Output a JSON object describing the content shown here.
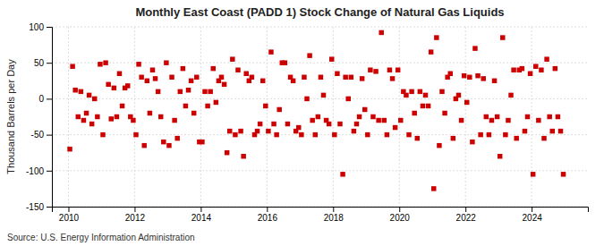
{
  "chart_data": {
    "type": "scatter",
    "title": "Monthly East Coast (PADD 1) Stock Change of Natural Gas Liquids",
    "ylabel": "Thousand Barrels per Day",
    "annotations": [
      "Source: U.S. Energy Information Administration"
    ],
    "color": "#cc0000",
    "marker": "square",
    "grid": true,
    "xlim": [
      2009.5,
      2025.7
    ],
    "xticks": [
      2010,
      2012,
      2014,
      2016,
      2018,
      2020,
      2022,
      2024
    ],
    "ylim": [
      -150,
      100
    ],
    "yticks": [
      -150,
      -100,
      -50,
      0,
      50,
      100
    ],
    "x": [
      2010.0416666667,
      2010.125,
      2010.2083333333,
      2010.2916666667,
      2010.375,
      2010.4583333333,
      2010.5416666667,
      2010.625,
      2010.7083333333,
      2010.7916666667,
      2010.875,
      2010.9583333333,
      2011.0416666667,
      2011.125,
      2011.2083333333,
      2011.2916666667,
      2011.375,
      2011.4583333333,
      2011.5416666667,
      2011.625,
      2011.7083333333,
      2011.7916666667,
      2011.875,
      2011.9583333333,
      2012.0416666667,
      2012.125,
      2012.2083333333,
      2012.2916666667,
      2012.375,
      2012.4583333333,
      2012.5416666667,
      2012.625,
      2012.7083333333,
      2012.7916666667,
      2012.875,
      2012.9583333333,
      2013.0416666667,
      2013.125,
      2013.2083333333,
      2013.2916666667,
      2013.375,
      2013.4583333333,
      2013.5416666667,
      2013.625,
      2013.7083333333,
      2013.7916666667,
      2013.875,
      2013.9583333333,
      2014.0416666667,
      2014.125,
      2014.2083333333,
      2014.2916666667,
      2014.375,
      2014.4583333333,
      2014.5416666667,
      2014.625,
      2014.7083333333,
      2014.7916666667,
      2014.875,
      2014.9583333333,
      2015.0416666667,
      2015.125,
      2015.2083333333,
      2015.2916666667,
      2015.375,
      2015.4583333333,
      2015.5416666667,
      2015.625,
      2015.7083333333,
      2015.7916666667,
      2015.875,
      2015.9583333333,
      2016.0416666667,
      2016.125,
      2016.2083333333,
      2016.2916666667,
      2016.375,
      2016.4583333333,
      2016.5416666667,
      2016.625,
      2016.7083333333,
      2016.7916666667,
      2016.875,
      2016.9583333333,
      2017.0416666667,
      2017.125,
      2017.2083333333,
      2017.2916666667,
      2017.375,
      2017.4583333333,
      2017.5416666667,
      2017.625,
      2017.7083333333,
      2017.7916666667,
      2017.875,
      2017.9583333333,
      2018.0416666667,
      2018.125,
      2018.2083333333,
      2018.2916666667,
      2018.375,
      2018.4583333333,
      2018.5416666667,
      2018.625,
      2018.7083333333,
      2018.7916666667,
      2018.875,
      2018.9583333333,
      2019.0416666667,
      2019.125,
      2019.2083333333,
      2019.2916666667,
      2019.375,
      2019.4583333333,
      2019.5416666667,
      2019.625,
      2019.7083333333,
      2019.7916666667,
      2019.875,
      2019.9583333333,
      2020.0416666667,
      2020.125,
      2020.2083333333,
      2020.2916666667,
      2020.375,
      2020.4583333333,
      2020.5416666667,
      2020.625,
      2020.7083333333,
      2020.7916666667,
      2020.875,
      2020.9583333333,
      2021.0416666667,
      2021.125,
      2021.2083333333,
      2021.2916666667,
      2021.375,
      2021.4583333333,
      2021.5416666667,
      2021.625,
      2021.7083333333,
      2021.7916666667,
      2021.875,
      2021.9583333333,
      2022.0416666667,
      2022.125,
      2022.2083333333,
      2022.2916666667,
      2022.375,
      2022.4583333333,
      2022.5416666667,
      2022.625,
      2022.7083333333,
      2022.7916666667,
      2022.875,
      2022.9583333333,
      2023.0416666667,
      2023.125,
      2023.2083333333,
      2023.2916666667,
      2023.375,
      2023.4583333333,
      2023.5416666667,
      2023.625,
      2023.7083333333,
      2023.7916666667,
      2023.875,
      2023.9583333333,
      2024.0416666667,
      2024.125,
      2024.2083333333,
      2024.2916666667,
      2024.375,
      2024.4583333333,
      2024.5416666667,
      2024.625,
      2024.7083333333,
      2024.7916666667,
      2024.875,
      2024.9583333333
    ],
    "values": [
      -70,
      45,
      12,
      -25,
      10,
      -30,
      -20,
      5,
      -35,
      0,
      -25,
      48,
      -50,
      50,
      20,
      -28,
      15,
      -25,
      35,
      -10,
      15,
      18,
      -25,
      -30,
      -50,
      48,
      30,
      -65,
      25,
      -20,
      40,
      28,
      10,
      -25,
      -60,
      50,
      -65,
      30,
      -30,
      -55,
      10,
      42,
      -10,
      12,
      25,
      -20,
      30,
      -60,
      -60,
      10,
      -10,
      10,
      42,
      -5,
      25,
      30,
      20,
      -75,
      -45,
      55,
      -50,
      40,
      -45,
      -80,
      35,
      25,
      30,
      -50,
      -45,
      -35,
      25,
      -10,
      -45,
      65,
      -35,
      -50,
      -15,
      50,
      50,
      -35,
      30,
      25,
      -45,
      -40,
      -50,
      30,
      0,
      60,
      -30,
      -50,
      -25,
      30,
      5,
      -30,
      -35,
      55,
      -50,
      35,
      -35,
      -105,
      30,
      0,
      30,
      -45,
      -35,
      -25,
      28,
      -15,
      -50,
      40,
      -25,
      38,
      -30,
      92,
      -30,
      -50,
      40,
      28,
      -40,
      40,
      -30,
      10,
      5,
      -50,
      10,
      -20,
      -55,
      10,
      -10,
      5,
      -10,
      65,
      -125,
      85,
      -65,
      10,
      -20,
      30,
      35,
      -55,
      0,
      5,
      -30,
      32,
      -5,
      30,
      -60,
      70,
      32,
      -50,
      28,
      -25,
      -50,
      -30,
      25,
      -25,
      -80,
      85,
      -50,
      -30,
      5,
      40,
      -55,
      40,
      42,
      -45,
      -25,
      35,
      -105,
      45,
      -30,
      40,
      -55,
      55,
      -25,
      -45,
      42,
      -25,
      -45,
      -105
    ]
  }
}
